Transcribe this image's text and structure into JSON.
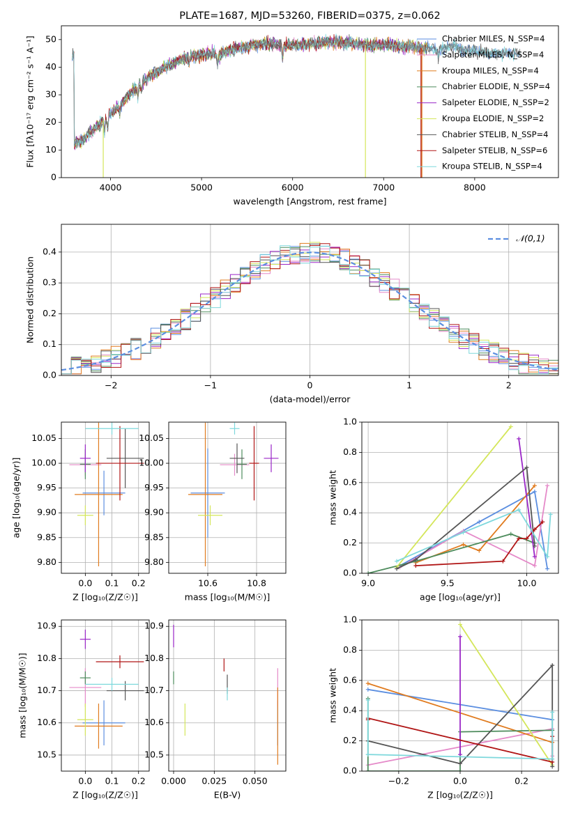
{
  "figure": {
    "colors": {
      "chabrier_miles": "#5b8ee0",
      "salpeter_miles": "#e58ac9",
      "kroupa_miles": "#e07b1f",
      "chabrier_elodie": "#4e8c5d",
      "salpeter_elodie": "#9a26c7",
      "kroupa_elodie": "#d4e65a",
      "chabrier_stelib": "#555555",
      "salpeter_stelib": "#b01515",
      "kroupa_stelib": "#7ed8dc"
    }
  },
  "chart_data": [
    {
      "id": "spectrum",
      "type": "line",
      "title": "PLATE=1687, MJD=53260, FIBERID=0375, z=0.062",
      "xlabel": "wavelength [Angstrom, rest frame]",
      "ylabel": "Flux [fλ10⁻¹⁷ erg cm⁻² s⁻¹ A⁻¹]",
      "xlim": [
        3460,
        8920
      ],
      "ylim": [
        0,
        55
      ],
      "xticks": [
        4000,
        5000,
        6000,
        7000,
        8000
      ],
      "yticks": [
        0,
        10,
        20,
        30,
        40,
        50
      ],
      "legend_position": "top-right",
      "legend": [
        "Chabrier MILES, N_SSP=4",
        "Salpeter MILES, N_SSP=4",
        "Kroupa MILES, N_SSP=4",
        "Chabrier ELODIE, N_SSP=4",
        "Salpeter ELODIE, N_SSP=2",
        "Kroupa ELODIE, N_SSP=2",
        "Chabrier STELIB, N_SSP=4",
        "Salpeter STELIB, N_SSP=6",
        "Kroupa STELIB, N_SSP=4"
      ],
      "continuum": [
        [
          3600,
          12
        ],
        [
          3700,
          14
        ],
        [
          3800,
          17
        ],
        [
          3900,
          20
        ],
        [
          4000,
          23
        ],
        [
          4100,
          26
        ],
        [
          4200,
          30
        ],
        [
          4300,
          33
        ],
        [
          4400,
          36
        ],
        [
          4500,
          38
        ],
        [
          4600,
          40
        ],
        [
          4700,
          41.5
        ],
        [
          4800,
          43
        ],
        [
          4900,
          44
        ],
        [
          5000,
          44.5
        ],
        [
          5100,
          45
        ],
        [
          5200,
          44.5
        ],
        [
          5300,
          46
        ],
        [
          5400,
          47
        ],
        [
          5500,
          47.5
        ],
        [
          5600,
          48
        ],
        [
          5700,
          48.5
        ],
        [
          5800,
          48.5
        ],
        [
          5900,
          48
        ],
        [
          6000,
          48
        ],
        [
          6100,
          48
        ],
        [
          6200,
          48.5
        ],
        [
          6300,
          49
        ],
        [
          6400,
          49
        ],
        [
          6500,
          49
        ],
        [
          6600,
          49
        ],
        [
          6700,
          48.5
        ],
        [
          6800,
          48
        ],
        [
          6900,
          48
        ],
        [
          7000,
          48
        ],
        [
          7100,
          48
        ],
        [
          7200,
          47.5
        ],
        [
          7300,
          47.5
        ],
        [
          7400,
          47
        ],
        [
          7500,
          47
        ],
        [
          7600,
          46
        ],
        [
          7700,
          48
        ],
        [
          7800,
          47
        ],
        [
          7900,
          46
        ],
        [
          8000,
          46
        ],
        [
          8100,
          45
        ],
        [
          8200,
          45
        ],
        [
          8300,
          45
        ],
        [
          8400,
          45
        ],
        [
          8500,
          44.5
        ]
      ]
    },
    {
      "id": "residuals",
      "type": "step",
      "xlabel": "(data-model)/error",
      "ylabel": "Normed distribution",
      "xlim": [
        -2.5,
        2.5
      ],
      "ylim": [
        0,
        0.49
      ],
      "xticks": [
        -2,
        -1,
        0,
        1,
        2
      ],
      "yticks": [
        0.0,
        0.1,
        0.2,
        0.3,
        0.4
      ],
      "legend_position": "top-right",
      "reference": {
        "label": "𝒩(0,1)",
        "mean": 0,
        "sigma": 1
      }
    },
    {
      "id": "age_vs_Z",
      "type": "errorbar",
      "xlabel": "Z [log₁₀(Z/Z☉)]",
      "ylabel": "age  [log₁₀(age/yr)]",
      "xlim": [
        -0.09,
        0.24
      ],
      "ylim": [
        9.778,
        10.083
      ],
      "xticks": [
        0.0,
        0.1,
        0.2
      ],
      "yticks": [
        9.8,
        9.85,
        9.9,
        9.95,
        10.0,
        10.05
      ],
      "points": [
        {
          "key": "chabrier_miles",
          "x": 0.07,
          "y": 9.94,
          "xerr": 0.08,
          "yerr": 0.045
        },
        {
          "key": "salpeter_miles",
          "x": 0.0,
          "y": 9.997,
          "xerr": 0.06,
          "yerr": 0.022
        },
        {
          "key": "kroupa_miles",
          "x": 0.05,
          "y": 9.937,
          "xerr": 0.09,
          "yerr": 0.145
        },
        {
          "key": "chabrier_elodie",
          "x": 0.0,
          "y": 9.998,
          "xerr": 0.02,
          "yerr": 0.03
        },
        {
          "key": "salpeter_elodie",
          "x": 0.0,
          "y": 10.01,
          "xerr": 0.02,
          "yerr": 0.028
        },
        {
          "key": "kroupa_elodie",
          "x": 0.0,
          "y": 9.895,
          "xerr": 0.03,
          "yerr": 0.02
        },
        {
          "key": "chabrier_stelib",
          "x": 0.15,
          "y": 10.01,
          "xerr": 0.07,
          "yerr": 0.06
        },
        {
          "key": "salpeter_stelib",
          "x": 0.13,
          "y": 10.0,
          "xerr": 0.09,
          "yerr": 0.075
        },
        {
          "key": "kroupa_stelib",
          "x": 0.1,
          "y": 10.07,
          "xerr": 0.1,
          "yerr": 0.012
        }
      ]
    },
    {
      "id": "age_vs_mass",
      "type": "errorbar",
      "xlabel": "mass [log₁₀(M/M☉)]",
      "ylabel": "",
      "xlim": [
        10.44,
        10.92
      ],
      "ylim": [
        9.778,
        10.083
      ],
      "xticks": [
        10.6,
        10.8
      ],
      "yticks": [
        9.8,
        9.85,
        9.9,
        9.95,
        10.0,
        10.05
      ],
      "points": [
        {
          "key": "chabrier_miles",
          "x": 10.6,
          "y": 9.94,
          "xerr": 0.07,
          "yerr": 0.09
        },
        {
          "key": "salpeter_miles",
          "x": 10.71,
          "y": 9.997,
          "xerr": 0.06,
          "yerr": 0.022
        },
        {
          "key": "kroupa_miles",
          "x": 10.59,
          "y": 9.937,
          "xerr": 0.07,
          "yerr": 0.145
        },
        {
          "key": "chabrier_elodie",
          "x": 10.74,
          "y": 9.998,
          "xerr": 0.02,
          "yerr": 0.03
        },
        {
          "key": "salpeter_elodie",
          "x": 10.86,
          "y": 10.01,
          "xerr": 0.03,
          "yerr": 0.028
        },
        {
          "key": "kroupa_elodie",
          "x": 10.61,
          "y": 9.895,
          "xerr": 0.05,
          "yerr": 0.02
        },
        {
          "key": "chabrier_stelib",
          "x": 10.72,
          "y": 10.01,
          "xerr": 0.03,
          "yerr": 0.03
        },
        {
          "key": "salpeter_stelib",
          "x": 10.79,
          "y": 10.0,
          "xerr": 0.02,
          "yerr": 0.075
        },
        {
          "key": "kroupa_stelib",
          "x": 10.71,
          "y": 10.07,
          "xerr": 0.02,
          "yerr": 0.012
        }
      ]
    },
    {
      "id": "weight_vs_age",
      "type": "line",
      "xlabel": "age  [log₁₀(age/yr)]",
      "ylabel": "mass weight",
      "xlim": [
        8.96,
        10.2
      ],
      "ylim": [
        0,
        1
      ],
      "xticks": [
        9.0,
        9.5,
        10.0
      ],
      "yticks": [
        0.0,
        0.2,
        0.4,
        0.6,
        0.8,
        1.0
      ],
      "series": [
        {
          "key": "chabrier_miles",
          "points": [
            [
              9.2,
              0.05
            ],
            [
              9.7,
              0.34
            ],
            [
              10.05,
              0.54
            ],
            [
              10.13,
              0.03
            ]
          ]
        },
        {
          "key": "salpeter_miles",
          "points": [
            [
              9.2,
              0.04
            ],
            [
              9.6,
              0.28
            ],
            [
              10.05,
              0.05
            ],
            [
              10.13,
              0.58
            ]
          ]
        },
        {
          "key": "kroupa_miles",
          "points": [
            [
              9.3,
              0.07
            ],
            [
              9.6,
              0.19
            ],
            [
              9.7,
              0.15
            ],
            [
              10.05,
              0.58
            ]
          ]
        },
        {
          "key": "chabrier_elodie",
          "points": [
            [
              9.0,
              0.0
            ],
            [
              9.3,
              0.08
            ],
            [
              9.9,
              0.26
            ],
            [
              10.05,
              0.2
            ]
          ]
        },
        {
          "key": "salpeter_elodie",
          "points": [
            [
              9.95,
              0.89
            ],
            [
              10.05,
              0.11
            ]
          ]
        },
        {
          "key": "kroupa_elodie",
          "points": [
            [
              9.18,
              0.04
            ],
            [
              9.9,
              0.97
            ]
          ]
        },
        {
          "key": "chabrier_stelib",
          "points": [
            [
              9.18,
              0.03
            ],
            [
              9.3,
              0.09
            ],
            [
              10.0,
              0.7
            ],
            [
              10.05,
              0.18
            ]
          ]
        },
        {
          "key": "salpeter_stelib",
          "points": [
            [
              9.3,
              0.05
            ],
            [
              9.85,
              0.08
            ],
            [
              9.95,
              0.23
            ],
            [
              10.0,
              0.23
            ],
            [
              10.05,
              0.29
            ],
            [
              10.1,
              0.34
            ]
          ]
        },
        {
          "key": "kroupa_stelib",
          "points": [
            [
              9.18,
              0.08
            ],
            [
              9.6,
              0.27
            ],
            [
              9.95,
              0.42
            ],
            [
              10.13,
              0.11
            ],
            [
              10.15,
              0.39
            ]
          ]
        }
      ]
    },
    {
      "id": "mass_vs_Z",
      "type": "errorbar",
      "xlabel": "Z [log₁₀(Z/Z☉)]",
      "ylabel": "mass [log₁₀(M/M☉)]",
      "xlim": [
        -0.09,
        0.24
      ],
      "ylim": [
        10.45,
        10.92
      ],
      "xticks": [
        0.0,
        0.1,
        0.2
      ],
      "yticks": [
        10.5,
        10.6,
        10.7,
        10.8,
        10.9
      ],
      "points": [
        {
          "key": "chabrier_miles",
          "x": 0.07,
          "y": 10.6,
          "xerr": 0.08,
          "yerr": 0.07
        },
        {
          "key": "salpeter_miles",
          "x": 0.0,
          "y": 10.71,
          "xerr": 0.06,
          "yerr": 0.06
        },
        {
          "key": "kroupa_miles",
          "x": 0.05,
          "y": 10.59,
          "xerr": 0.09,
          "yerr": 0.07
        },
        {
          "key": "chabrier_elodie",
          "x": 0.0,
          "y": 10.74,
          "xerr": 0.02,
          "yerr": 0.02
        },
        {
          "key": "salpeter_elodie",
          "x": 0.0,
          "y": 10.86,
          "xerr": 0.02,
          "yerr": 0.03
        },
        {
          "key": "kroupa_elodie",
          "x": 0.0,
          "y": 10.61,
          "xerr": 0.03,
          "yerr": 0.05
        },
        {
          "key": "chabrier_stelib",
          "x": 0.15,
          "y": 10.7,
          "xerr": 0.07,
          "yerr": 0.03
        },
        {
          "key": "salpeter_stelib",
          "x": 0.13,
          "y": 10.79,
          "xerr": 0.09,
          "yerr": 0.02
        },
        {
          "key": "kroupa_stelib",
          "x": 0.1,
          "y": 10.72,
          "xerr": 0.1,
          "yerr": 0.02
        }
      ]
    },
    {
      "id": "mass_vs_ebv",
      "type": "errorbar",
      "xlabel": "E(B-V)",
      "ylabel": "",
      "xlim": [
        -0.003,
        0.069
      ],
      "ylim": [
        10.45,
        10.92
      ],
      "xticks": [
        0.0,
        0.025,
        0.05
      ],
      "yticks": [
        10.5,
        10.6,
        10.7,
        10.8,
        10.9
      ],
      "points": [
        {
          "key": "chabrier_miles",
          "x": 0.064,
          "y": 10.6,
          "xerr": 0,
          "yerr": 0.07
        },
        {
          "key": "salpeter_miles",
          "x": 0.064,
          "y": 10.71,
          "xerr": 0,
          "yerr": 0.06
        },
        {
          "key": "kroupa_miles",
          "x": 0.064,
          "y": 10.59,
          "xerr": 0,
          "yerr": 0.12
        },
        {
          "key": "chabrier_elodie",
          "x": 0.0,
          "y": 10.74,
          "xerr": 0,
          "yerr": 0.02
        },
        {
          "key": "salpeter_elodie",
          "x": 0.0,
          "y": 10.87,
          "xerr": 0,
          "yerr": 0.035
        },
        {
          "key": "kroupa_elodie",
          "x": 0.007,
          "y": 10.61,
          "xerr": 0,
          "yerr": 0.05
        },
        {
          "key": "chabrier_stelib",
          "x": 0.033,
          "y": 10.72,
          "xerr": 0,
          "yerr": 0.03
        },
        {
          "key": "salpeter_stelib",
          "x": 0.031,
          "y": 10.78,
          "xerr": 0,
          "yerr": 0.02
        },
        {
          "key": "kroupa_stelib",
          "x": 0.033,
          "y": 10.69,
          "xerr": 0,
          "yerr": 0.02
        }
      ]
    },
    {
      "id": "weight_vs_Z",
      "type": "line",
      "xlabel": "Z [log₁₀(Z/Z☉)]",
      "ylabel": "mass weight",
      "xlim": [
        -0.32,
        0.32
      ],
      "ylim": [
        0,
        1
      ],
      "xticks": [
        -0.2,
        0.0,
        0.2
      ],
      "yticks": [
        0.0,
        0.2,
        0.4,
        0.6,
        0.8,
        1.0
      ],
      "series": [
        {
          "key": "chabrier_miles",
          "points": [
            [
              -0.3,
              0.54
            ],
            [
              0.3,
              0.34
            ]
          ]
        },
        {
          "key": "salpeter_miles",
          "points": [
            [
              -0.3,
              0.04
            ],
            [
              0.3,
              0.28
            ],
            [
              0.3,
              0.1
            ]
          ]
        },
        {
          "key": "kroupa_miles",
          "points": [
            [
              -0.3,
              0.58
            ],
            [
              0.3,
              0.19
            ]
          ]
        },
        {
          "key": "chabrier_elodie",
          "points": [
            [
              -0.3,
              0.0
            ],
            [
              -0.3,
              0.48
            ],
            [
              -0.3,
              0.0
            ],
            [
              0.0,
              0.0
            ],
            [
              0.0,
              0.26
            ],
            [
              0.3,
              0.27
            ]
          ]
        },
        {
          "key": "salpeter_elodie",
          "points": [
            [
              0.0,
              0.89
            ],
            [
              0.0,
              0.11
            ]
          ]
        },
        {
          "key": "kroupa_elodie",
          "points": [
            [
              0.0,
              0.97
            ],
            [
              0.3,
              0.04
            ]
          ]
        },
        {
          "key": "chabrier_stelib",
          "points": [
            [
              -0.3,
              0.2
            ],
            [
              0.0,
              0.05
            ],
            [
              0.3,
              0.7
            ],
            [
              0.3,
              0.03
            ]
          ]
        },
        {
          "key": "salpeter_stelib",
          "points": [
            [
              -0.3,
              0.34
            ],
            [
              -0.3,
              0.35
            ],
            [
              0.3,
              0.06
            ],
            [
              0.3,
              0.23
            ]
          ]
        },
        {
          "key": "kroupa_stelib",
          "points": [
            [
              -0.3,
              0.11
            ],
            [
              -0.3,
              0.47
            ],
            [
              -0.3,
              0.11
            ],
            [
              0.3,
              0.08
            ],
            [
              0.3,
              0.39
            ]
          ]
        }
      ]
    }
  ]
}
